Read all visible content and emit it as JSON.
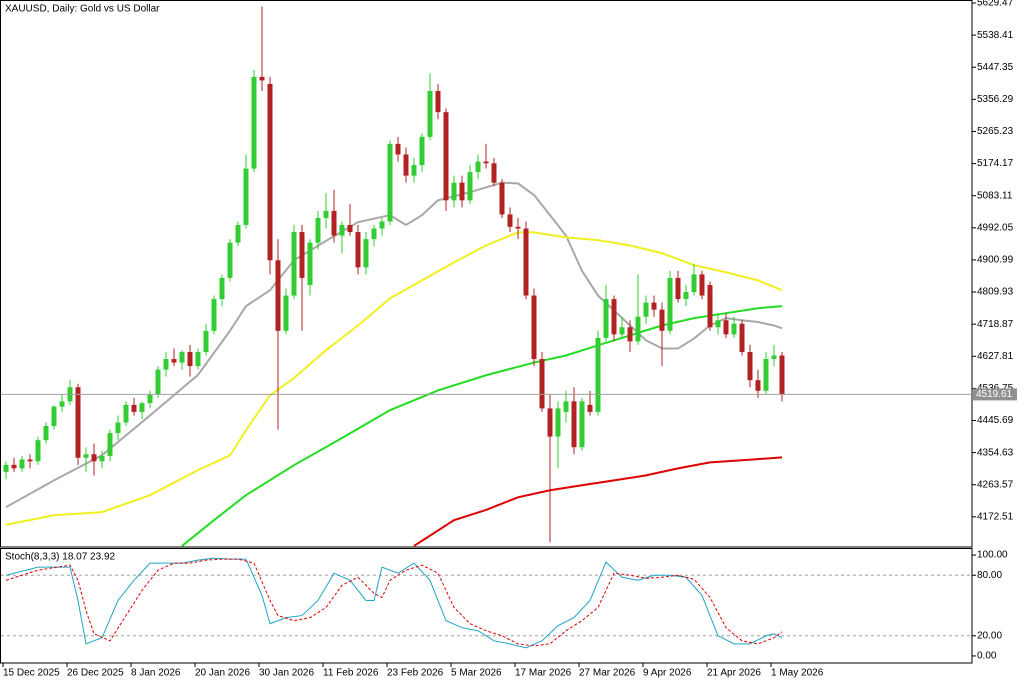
{
  "chart_data": [
    {
      "type": "candlestick",
      "title": "XAUUSD, Daily:  Gold vs US Dollar",
      "categories": [
        "15 Dec 2025",
        null,
        null,
        null,
        null,
        null,
        null,
        null,
        "26 Dec 2025",
        null,
        null,
        null,
        null,
        null,
        null,
        null,
        "8 Jan 2026",
        null,
        null,
        null,
        null,
        null,
        null,
        null,
        "20 Jan 2026",
        null,
        null,
        null,
        null,
        null,
        null,
        null,
        "30 Jan 2026",
        null,
        null,
        null,
        null,
        null,
        null,
        null,
        "11 Feb 2026",
        null,
        null,
        null,
        null,
        null,
        null,
        null,
        "23 Feb 2026",
        null,
        null,
        null,
        null,
        null,
        null,
        null,
        "5 Mar 2026",
        null,
        null,
        null,
        null,
        null,
        null,
        null,
        "17 Mar 2026",
        null,
        null,
        null,
        null,
        null,
        null,
        null,
        "27 Mar 2026",
        null,
        null,
        null,
        null,
        null,
        null,
        null,
        "9 Apr 2026",
        null,
        null,
        null,
        null,
        null,
        null,
        null,
        "21 Apr 2026",
        null,
        null,
        null,
        null,
        null,
        null,
        null,
        "1 May 2026",
        null
      ],
      "open": [
        4300,
        4320,
        4310,
        4335,
        4330,
        4390,
        4430,
        4485,
        4500,
        4540,
        4340,
        4350,
        4330,
        4345,
        4410,
        4440,
        4490,
        4470,
        4495,
        4520,
        4590,
        4620,
        4610,
        4640,
        4600,
        4640,
        4700,
        4790,
        4850,
        4950,
        5000,
        5160,
        5420,
        5400,
        4900,
        4700,
        4800,
        4980,
        4830,
        4950,
        5020,
        5040,
        4970,
        5000,
        4980,
        4880,
        4960,
        4990,
        5010,
        5230,
        5200,
        5140,
        5170,
        5250,
        5380,
        5320,
        5070,
        5120,
        5070,
        5150,
        5180,
        5175,
        5120,
        5030,
        4995,
        4990,
        4800,
        4620,
        4480,
        4400,
        4470,
        4500,
        4370,
        4490,
        4470,
        4680,
        4790,
        4690,
        4710,
        4670,
        4740,
        4780,
        4760,
        4700,
        4850,
        4790,
        4810,
        4860,
        4830,
        4710,
        4730,
        4690,
        4720,
        4640,
        4560,
        4530,
        4620,
        4630
      ],
      "high": [
        4330,
        4340,
        4345,
        4350,
        4400,
        4440,
        4490,
        4520,
        4560,
        4550,
        4370,
        4380,
        4360,
        4420,
        4460,
        4500,
        4510,
        4500,
        4530,
        4600,
        4640,
        4650,
        4645,
        4660,
        4650,
        4720,
        4800,
        4860,
        4960,
        5010,
        5200,
        5440,
        5620,
        5420,
        4960,
        4820,
        5000,
        5000,
        4960,
        5040,
        5090,
        5100,
        5010,
        5060,
        5000,
        4980,
        5000,
        5020,
        5240,
        5250,
        5220,
        5190,
        5260,
        5430,
        5400,
        5330,
        5140,
        5140,
        5170,
        5200,
        5230,
        5190,
        5130,
        5050,
        5020,
        5010,
        4820,
        4640,
        4520,
        4500,
        4530,
        4540,
        4510,
        4530,
        4700,
        4830,
        4800,
        4740,
        4730,
        4860,
        4800,
        4800,
        4780,
        4870,
        4870,
        4830,
        4890,
        4870,
        4840,
        4750,
        4750,
        4740,
        4730,
        4660,
        4590,
        4640,
        4660,
        4640
      ],
      "low": [
        4280,
        4300,
        4300,
        4310,
        4320,
        4380,
        4420,
        4470,
        4490,
        4320,
        4300,
        4290,
        4310,
        4330,
        4390,
        4430,
        4460,
        4450,
        4480,
        4510,
        4570,
        4600,
        4590,
        4570,
        4590,
        4630,
        4690,
        4770,
        4840,
        4940,
        4990,
        5150,
        5380,
        4860,
        4420,
        4690,
        4790,
        4700,
        4800,
        4930,
        4990,
        4950,
        4920,
        4970,
        4860,
        4860,
        4940,
        4970,
        5000,
        5180,
        5120,
        5120,
        5150,
        5240,
        5300,
        5040,
        5050,
        5050,
        5060,
        5130,
        5160,
        5110,
        5020,
        4980,
        4960,
        4790,
        4600,
        4470,
        4100,
        4310,
        4440,
        4350,
        4360,
        4460,
        4460,
        4670,
        4670,
        4680,
        4640,
        4660,
        4720,
        4740,
        4600,
        4690,
        4780,
        4770,
        4800,
        4790,
        4700,
        4690,
        4680,
        4680,
        4630,
        4540,
        4510,
        4520,
        4600,
        4500
      ],
      "close": [
        4320,
        4310,
        4335,
        4330,
        4390,
        4430,
        4485,
        4500,
        4540,
        4340,
        4350,
        4330,
        4345,
        4410,
        4440,
        4490,
        4470,
        4495,
        4520,
        4590,
        4620,
        4610,
        4640,
        4600,
        4640,
        4700,
        4790,
        4850,
        4950,
        5000,
        5160,
        5420,
        5410,
        4900,
        4700,
        4800,
        4980,
        4850,
        4950,
        5020,
        5040,
        4970,
        5000,
        4980,
        4880,
        4960,
        4990,
        5010,
        5230,
        5200,
        5140,
        5170,
        5250,
        5380,
        5320,
        5070,
        5120,
        5070,
        5150,
        5180,
        5175,
        5120,
        5030,
        4995,
        4990,
        4800,
        4620,
        4480,
        4400,
        4480,
        4500,
        4370,
        4500,
        4470,
        4680,
        4790,
        4690,
        4710,
        4670,
        4740,
        4780,
        4760,
        4700,
        4850,
        4790,
        4810,
        4860,
        4800,
        4710,
        4730,
        4690,
        4720,
        4640,
        4560,
        4530,
        4620,
        4630,
        4519.61
      ],
      "up_color": "#32cd32",
      "down_color": "#b22222",
      "series": [
        {
          "color": "#a8a8a8",
          "x": [
            0,
            6,
            12,
            18,
            24,
            28,
            30,
            33,
            36,
            40,
            44,
            48,
            50,
            52,
            54,
            58,
            62,
            64,
            66,
            68,
            70,
            72,
            74,
            76,
            78,
            80,
            82,
            84,
            86,
            88,
            90,
            92,
            94,
            96,
            97
          ],
          "values": [
            4200,
            4276,
            4347,
            4460,
            4575,
            4700,
            4770,
            4815,
            4900,
            4955,
            5008,
            5028,
            5000,
            5028,
            5070,
            5093,
            5120,
            5118,
            5085,
            5028,
            4970,
            4870,
            4800,
            4758,
            4715,
            4673,
            4650,
            4650,
            4678,
            4715,
            4736,
            4730,
            4725,
            4715,
            4707
          ]
        },
        {
          "color": "#f0f020",
          "x": [
            0,
            6,
            12,
            18,
            24,
            28,
            30,
            33,
            36,
            40,
            44,
            48,
            52,
            56,
            60,
            64,
            66,
            70,
            74,
            78,
            82,
            86,
            90,
            94,
            97
          ],
          "values": [
            4150,
            4177,
            4186,
            4234,
            4305,
            4347,
            4418,
            4517,
            4566,
            4645,
            4715,
            4792,
            4843,
            4894,
            4942,
            4979,
            4979,
            4965,
            4957,
            4942,
            4920,
            4886,
            4866,
            4843,
            4815
          ]
        },
        {
          "color": "#22dd22",
          "x": [
            22,
            26,
            30,
            36,
            42,
            48,
            54,
            60,
            66,
            70,
            74,
            78,
            82,
            86,
            90,
            94,
            97
          ],
          "values": [
            4090,
            4163,
            4234,
            4319,
            4396,
            4475,
            4531,
            4574,
            4610,
            4630,
            4659,
            4687,
            4715,
            4736,
            4750,
            4764,
            4770
          ]
        },
        {
          "color": "#dd0000",
          "x": [
            51,
            56,
            60,
            64,
            68,
            72,
            76,
            80,
            84,
            88,
            92,
            97
          ],
          "values": [
            4090,
            4163,
            4192,
            4228,
            4248,
            4262,
            4276,
            4290,
            4310,
            4327,
            4333,
            4341
          ]
        }
      ],
      "ylim": [
        4087,
        5638
      ],
      "yticks": [
        5629.47,
        5538.41,
        5447.35,
        5356.29,
        5265.23,
        5174.17,
        5083.11,
        4992.05,
        4900.99,
        4809.93,
        4718.87,
        4627.81,
        4536.75,
        4445.69,
        4354.63,
        4263.57,
        4172.51
      ]
    },
    {
      "type": "line",
      "title": "Stoch(8,3,3) 18.07 23.92",
      "series": [
        {
          "color": "#1fa3c7",
          "x": [
            0,
            4,
            8,
            9,
            10,
            12,
            14,
            16,
            18,
            20,
            22,
            24,
            26,
            28,
            30,
            32,
            33,
            35,
            37,
            39,
            41,
            43,
            45,
            46,
            47,
            49,
            51,
            53,
            55,
            57,
            59,
            61,
            63,
            65,
            67,
            69,
            71,
            73,
            75,
            77,
            79,
            81,
            83,
            85,
            87,
            89,
            91,
            93,
            95,
            96,
            97
          ],
          "values": [
            80,
            88,
            88,
            55,
            12,
            18,
            55,
            75,
            92,
            92,
            92,
            95,
            97,
            96,
            96,
            60,
            32,
            38,
            40,
            55,
            82,
            75,
            55,
            55,
            88,
            82,
            92,
            75,
            35,
            28,
            25,
            15,
            12,
            8,
            15,
            30,
            38,
            55,
            93,
            78,
            75,
            80,
            80,
            78,
            60,
            20,
            12,
            12,
            20,
            22,
            18.07
          ]
        },
        {
          "color": "#e00000",
          "dashed": true,
          "x": [
            0,
            4,
            8,
            9,
            10,
            11,
            13,
            15,
            17,
            19,
            21,
            23,
            25,
            27,
            29,
            31,
            33,
            34,
            36,
            38,
            40,
            42,
            44,
            46,
            47,
            48,
            50,
            52,
            54,
            56,
            58,
            60,
            62,
            64,
            66,
            68,
            70,
            72,
            74,
            76,
            78,
            80,
            82,
            84,
            86,
            88,
            90,
            92,
            94,
            96,
            97
          ],
          "values": [
            75,
            85,
            90,
            75,
            45,
            22,
            15,
            40,
            65,
            85,
            92,
            92,
            95,
            96,
            96,
            92,
            55,
            40,
            35,
            38,
            48,
            70,
            78,
            62,
            58,
            75,
            85,
            90,
            82,
            48,
            32,
            25,
            20,
            12,
            10,
            12,
            25,
            35,
            48,
            82,
            80,
            77,
            78,
            80,
            76,
            58,
            28,
            15,
            12,
            18,
            23.92
          ]
        }
      ],
      "levels": [
        80,
        20
      ],
      "ylim": [
        -7,
        106
      ],
      "yticks": [
        {
          "value": 100,
          "label": "100.00"
        },
        {
          "value": 80,
          "label": "80.00"
        },
        {
          "value": 20,
          "label": "20.00"
        },
        {
          "value": 0,
          "label": "0.00"
        }
      ]
    }
  ]
}
